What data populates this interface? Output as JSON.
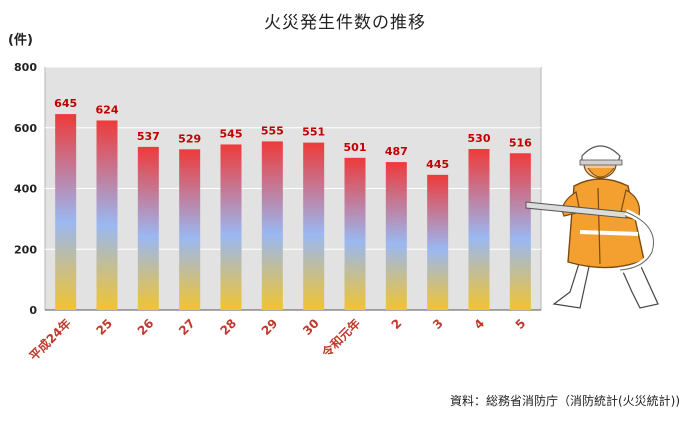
{
  "title": "火災発生件数の推移",
  "unit_label": "(件)",
  "source": "資料：総務省消防庁（消防統計(火災統計))",
  "colors": {
    "plot_bg": "#e2e2e2",
    "bar_top": "#ee3a3a",
    "bar_mid": "#9ab8f2",
    "bar_bottom": "#f0c430",
    "value_label": "#c00000",
    "era_label": "#c0392b"
  },
  "chart_data": {
    "type": "bar",
    "title": "火災発生件数の推移",
    "ylabel": "(件)",
    "xlabel": "",
    "ylim": [
      0,
      800
    ],
    "yticks": [
      0,
      200,
      400,
      600,
      800
    ],
    "grid": true,
    "categories": [
      "平成24年",
      "25",
      "26",
      "27",
      "28",
      "29",
      "30",
      "令和元年",
      "2",
      "3",
      "4",
      "5"
    ],
    "values": [
      645,
      624,
      537,
      529,
      545,
      555,
      551,
      501,
      487,
      445,
      530,
      516
    ]
  },
  "illustration": "firefighter-icon"
}
